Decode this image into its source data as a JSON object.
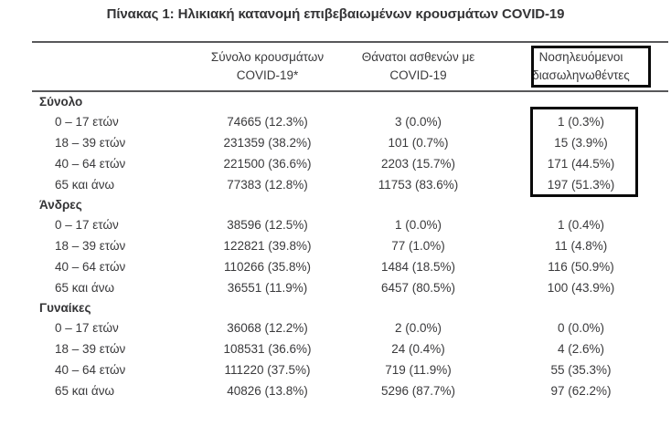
{
  "title": "Πίνακας 1: Ηλικιακή κατανομή επιβεβαιωμένων κρουσμάτων COVID-19",
  "colors": {
    "text": "#3a3a3c",
    "rule": "#58585a",
    "highlight_box_border": "#0a0a0a",
    "background": "#ffffff"
  },
  "table": {
    "columns": [
      {
        "label": "Σύνολο κρουσμάτων\nCOVID-19*"
      },
      {
        "label": "Θάνατοι ασθενών με\nCOVID-19"
      },
      {
        "label": "Νοσηλευόμενοι\nδιασωληνωθέντες",
        "highlighted": true
      }
    ],
    "sections": [
      {
        "name": "Σύνολο",
        "intubated_highlighted": true,
        "rows": [
          {
            "age": "0 – 17 ετών",
            "cases": "74665 (12.3%)",
            "deaths": "3 (0.0%)",
            "intubated": "1 (0.3%)"
          },
          {
            "age": "18 – 39 ετών",
            "cases": "231359 (38.2%)",
            "deaths": "101 (0.7%)",
            "intubated": "15 (3.9%)"
          },
          {
            "age": "40 – 64 ετών",
            "cases": "221500 (36.6%)",
            "deaths": "2203 (15.7%)",
            "intubated": "171 (44.5%)"
          },
          {
            "age": "65 και άνω",
            "cases": "77383 (12.8%)",
            "deaths": "11753 (83.6%)",
            "intubated": "197 (51.3%)"
          }
        ]
      },
      {
        "name": "Άνδρες",
        "rows": [
          {
            "age": "0 – 17 ετών",
            "cases": "38596 (12.5%)",
            "deaths": "1 (0.0%)",
            "intubated": "1 (0.4%)"
          },
          {
            "age": "18 – 39 ετών",
            "cases": "122821 (39.8%)",
            "deaths": "77 (1.0%)",
            "intubated": "11 (4.8%)"
          },
          {
            "age": "40 – 64 ετών",
            "cases": "110266 (35.8%)",
            "deaths": "1484 (18.5%)",
            "intubated": "116 (50.9%)"
          },
          {
            "age": "65 και άνω",
            "cases": "36551 (11.9%)",
            "deaths": "6457 (80.5%)",
            "intubated": "100 (43.9%)"
          }
        ]
      },
      {
        "name": "Γυναίκες",
        "rows": [
          {
            "age": "0 – 17 ετών",
            "cases": "36068 (12.2%)",
            "deaths": "2 (0.0%)",
            "intubated": "0 (0.0%)"
          },
          {
            "age": "18 – 39 ετών",
            "cases": "108531 (36.6%)",
            "deaths": "24 (0.4%)",
            "intubated": "4 (2.6%)"
          },
          {
            "age": "40 – 64 ετών",
            "cases": "111220 (37.5%)",
            "deaths": "719 (11.9%)",
            "intubated": "55 (35.3%)"
          },
          {
            "age": "65 και άνω",
            "cases": "40826 (13.8%)",
            "deaths": "5296 (87.7%)",
            "intubated": "97 (62.2%)"
          }
        ]
      }
    ]
  }
}
